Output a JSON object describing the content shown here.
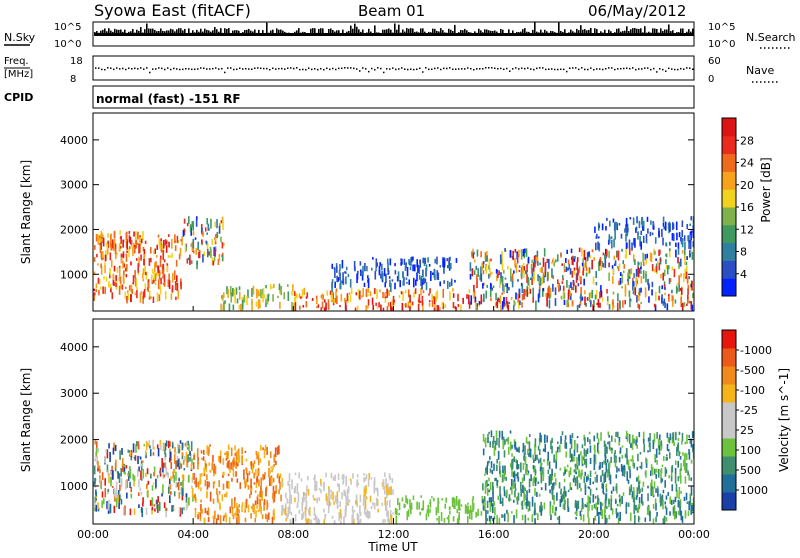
{
  "header": {
    "title": "Syowa East (fitACF)",
    "beam": "Beam 01",
    "date": "06/May/2012"
  },
  "noise_panel": {
    "left_label": "N.Sky",
    "left_ticks": [
      "10^5",
      "10^0"
    ],
    "right_label": "N.Search",
    "right_ticks": [
      "10^5",
      "10^0"
    ]
  },
  "freq_panel": {
    "left_label_line1": "Freq.",
    "left_label_line2": "[MHz]",
    "left_ticks": [
      "18",
      "8"
    ],
    "right_label": "Nave",
    "right_ticks": [
      "60",
      "0"
    ]
  },
  "cpid_panel": {
    "label": "CPID",
    "text": "normal (fast) -151 RF"
  },
  "x_axis": {
    "label": "Time UT",
    "ticks": [
      "00:00",
      "04:00",
      "08:00",
      "12:00",
      "16:00",
      "20:00",
      "00:00"
    ]
  },
  "chart_data": [
    {
      "type": "heatmap",
      "quantity": "Power",
      "ylabel": "Slant Range [km]",
      "yticks": [
        1000,
        2000,
        3000,
        4000
      ],
      "ylim": [
        180,
        4600
      ],
      "x_range_hours": [
        0,
        24
      ],
      "colorbar": {
        "label": "Power [dB]",
        "ticks": [
          "4",
          "8",
          "12",
          "16",
          "20",
          "24",
          "28"
        ],
        "colors": [
          "#0022ff",
          "#2a4fc4",
          "#2e7fa0",
          "#3f9a5f",
          "#7fb24a",
          "#f1d21c",
          "#f6a21a",
          "#f06a1d",
          "#ea2a1d",
          "#de1414"
        ]
      },
      "echo_regions": [
        {
          "t0": 0.0,
          "t1": 3.5,
          "r0": 500,
          "r1": 1900,
          "level": "high"
        },
        {
          "t0": 0.0,
          "t1": 2.0,
          "r0": 1600,
          "r1": 2000,
          "level": "high"
        },
        {
          "t0": 3.5,
          "t1": 5.2,
          "r0": 1300,
          "r1": 2300,
          "level": "mixed"
        },
        {
          "t0": 5.0,
          "t1": 8.0,
          "r0": 300,
          "r1": 800,
          "level": "medium"
        },
        {
          "t0": 8.0,
          "t1": 15.0,
          "r0": 250,
          "r1": 700,
          "level": "high"
        },
        {
          "t0": 9.5,
          "t1": 14.5,
          "r0": 800,
          "r1": 1400,
          "level": "low"
        },
        {
          "t0": 15.0,
          "t1": 24.0,
          "r0": 300,
          "r1": 1600,
          "level": "mixed"
        },
        {
          "t0": 20.0,
          "t1": 24.0,
          "r0": 1700,
          "r1": 2300,
          "level": "low"
        }
      ]
    },
    {
      "type": "heatmap",
      "quantity": "Velocity",
      "ylabel": "Slant Range [km]",
      "yticks": [
        1000,
        2000,
        3000,
        4000
      ],
      "ylim": [
        180,
        4600
      ],
      "x_range_hours": [
        0,
        24
      ],
      "colorbar": {
        "label": "Velocity [m s^-1]",
        "ticks": [
          "1000",
          "500",
          "100",
          "25",
          "-25",
          "-100",
          "-500",
          "-1000"
        ],
        "colors": [
          "#1a3fa8",
          "#1f6f9a",
          "#3e8f70",
          "#6cc23d",
          "#c8c8c8",
          "#c8c8c8",
          "#f5b51a",
          "#f08a1a",
          "#ec5a1a",
          "#e8150f"
        ]
      },
      "echo_regions": [
        {
          "t0": 0.0,
          "t1": 4.0,
          "r0": 500,
          "r1": 2000,
          "level": "mixed"
        },
        {
          "t0": 4.0,
          "t1": 7.5,
          "r0": 300,
          "r1": 1900,
          "level": "negative"
        },
        {
          "t0": 7.5,
          "t1": 12.0,
          "r0": 250,
          "r1": 1300,
          "level": "zero"
        },
        {
          "t0": 12.0,
          "t1": 15.5,
          "r0": 300,
          "r1": 800,
          "level": "positive-low"
        },
        {
          "t0": 15.5,
          "t1": 24.0,
          "r0": 300,
          "r1": 2200,
          "level": "positive"
        }
      ]
    }
  ]
}
